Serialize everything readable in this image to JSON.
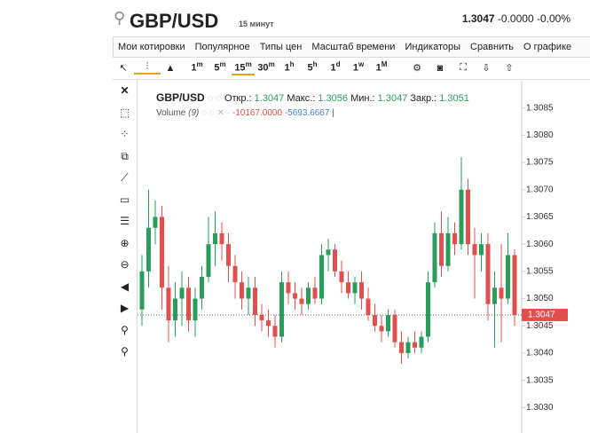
{
  "header": {
    "symbol": "GBP/USD",
    "interval": "15 минут",
    "price": "1.3047",
    "change": "-0.0000",
    "change_pct": "-0.00%"
  },
  "menu": [
    "Мои котировки",
    "Популярное",
    "Типы цен",
    "Масштаб времени",
    "Индикаторы",
    "Сравнить",
    "О графике"
  ],
  "toolbar": {
    "intervals": [
      {
        "num": "1",
        "unit": "m"
      },
      {
        "num": "5",
        "unit": "m"
      },
      {
        "num": "15",
        "unit": "m"
      },
      {
        "num": "30",
        "unit": "m"
      },
      {
        "num": "1",
        "unit": "h"
      },
      {
        "num": "5",
        "unit": "h"
      },
      {
        "num": "1",
        "unit": "d"
      },
      {
        "num": "1",
        "unit": "w"
      },
      {
        "num": "1",
        "unit": "M"
      }
    ]
  },
  "legend": {
    "symbol": "GBP/USD",
    "open_label": "Откр.:",
    "open": "1.3047",
    "high_label": "Макс.:",
    "high": "1.3056",
    "low_label": "Мин.:",
    "low": "1.3047",
    "close_label": "Закр.:",
    "close": "1.3051",
    "volume_label": "Volume",
    "volume_param": "(9)",
    "volume_a": "-10167.0000",
    "volume_b": "-5693.6667"
  },
  "chart_data": {
    "type": "candlestick",
    "up_color": "#2a9d5c",
    "down_color": "#e0504f",
    "open": [
      1.3048,
      1.3055,
      1.3063,
      1.3065,
      1.3052,
      1.3046,
      1.305,
      1.3052,
      1.3046,
      1.305,
      1.3054,
      1.306,
      1.3062,
      1.306,
      1.3056,
      1.3053,
      1.305,
      1.3052,
      1.3047,
      1.3046,
      1.3045,
      1.3043,
      1.3053,
      1.3051,
      1.305,
      1.3049,
      1.3052,
      1.305,
      1.3058,
      1.3059,
      1.3055,
      1.3053,
      1.3051,
      1.3053,
      1.305,
      1.3047,
      1.3045,
      1.3044,
      1.3047,
      1.3042,
      1.304,
      1.3042,
      1.3041,
      1.3043,
      1.3053,
      1.3062,
      1.3056,
      1.3062,
      1.306,
      1.307,
      1.306,
      1.3058,
      1.306,
      1.3049,
      1.3052,
      1.305,
      1.3058
    ],
    "high": [
      1.3058,
      1.307,
      1.3068,
      1.3067,
      1.3056,
      1.3053,
      1.3055,
      1.3054,
      1.3052,
      1.3056,
      1.3065,
      1.3066,
      1.3064,
      1.3062,
      1.3058,
      1.3055,
      1.3054,
      1.3054,
      1.3049,
      1.3048,
      1.3047,
      1.3055,
      1.3055,
      1.3053,
      1.3052,
      1.3053,
      1.3054,
      1.306,
      1.3061,
      1.306,
      1.3057,
      1.3055,
      1.3054,
      1.3055,
      1.3052,
      1.3049,
      1.3047,
      1.3048,
      1.3048,
      1.3044,
      1.3043,
      1.3044,
      1.3044,
      1.3055,
      1.3064,
      1.3066,
      1.3065,
      1.3064,
      1.3076,
      1.3072,
      1.3063,
      1.3062,
      1.3062,
      1.3055,
      1.306,
      1.3062,
      1.3059
    ],
    "low": [
      1.3045,
      1.3052,
      1.306,
      1.3048,
      1.3042,
      1.3043,
      1.3045,
      1.3044,
      1.3043,
      1.3048,
      1.3053,
      1.3056,
      1.3057,
      1.3053,
      1.305,
      1.3048,
      1.3047,
      1.3045,
      1.3044,
      1.3043,
      1.3041,
      1.3042,
      1.3049,
      1.3048,
      1.3047,
      1.3048,
      1.3049,
      1.3049,
      1.3055,
      1.3054,
      1.3051,
      1.305,
      1.3049,
      1.3048,
      1.3046,
      1.3044,
      1.3042,
      1.3043,
      1.3041,
      1.3038,
      1.3039,
      1.304,
      1.304,
      1.3042,
      1.3052,
      1.3054,
      1.3055,
      1.3058,
      1.3059,
      1.3058,
      1.305,
      1.3055,
      1.3046,
      1.3041,
      1.3042,
      1.3049,
      1.3045
    ],
    "close": [
      1.3055,
      1.3063,
      1.3065,
      1.3052,
      1.3046,
      1.305,
      1.3052,
      1.3046,
      1.305,
      1.3054,
      1.306,
      1.3062,
      1.306,
      1.3056,
      1.3053,
      1.305,
      1.3052,
      1.3047,
      1.3046,
      1.3045,
      1.3043,
      1.3053,
      1.3051,
      1.305,
      1.3049,
      1.3052,
      1.305,
      1.3058,
      1.3059,
      1.3055,
      1.3053,
      1.3051,
      1.3053,
      1.305,
      1.3047,
      1.3045,
      1.3044,
      1.3047,
      1.3042,
      1.304,
      1.3042,
      1.3041,
      1.3043,
      1.3053,
      1.3062,
      1.3056,
      1.3062,
      1.306,
      1.307,
      1.306,
      1.3058,
      1.306,
      1.3049,
      1.3052,
      1.305,
      1.3058,
      1.3047
    ],
    "ylim": [
      1.3025,
      1.309
    ],
    "yticks": [
      {
        "value": 1.303,
        "label": "1.3030"
      },
      1.3035,
      {
        "value": 1.304,
        "label": "1.3040"
      },
      1.3045,
      {
        "value": 1.305,
        "label": "1.3050"
      },
      1.3055,
      {
        "value": 1.306,
        "label": "1.3060"
      },
      1.3065,
      {
        "value": 1.307,
        "label": "1.3070"
      },
      1.3075,
      {
        "value": 1.308,
        "label": "1.3080"
      },
      1.3085
    ]
  }
}
